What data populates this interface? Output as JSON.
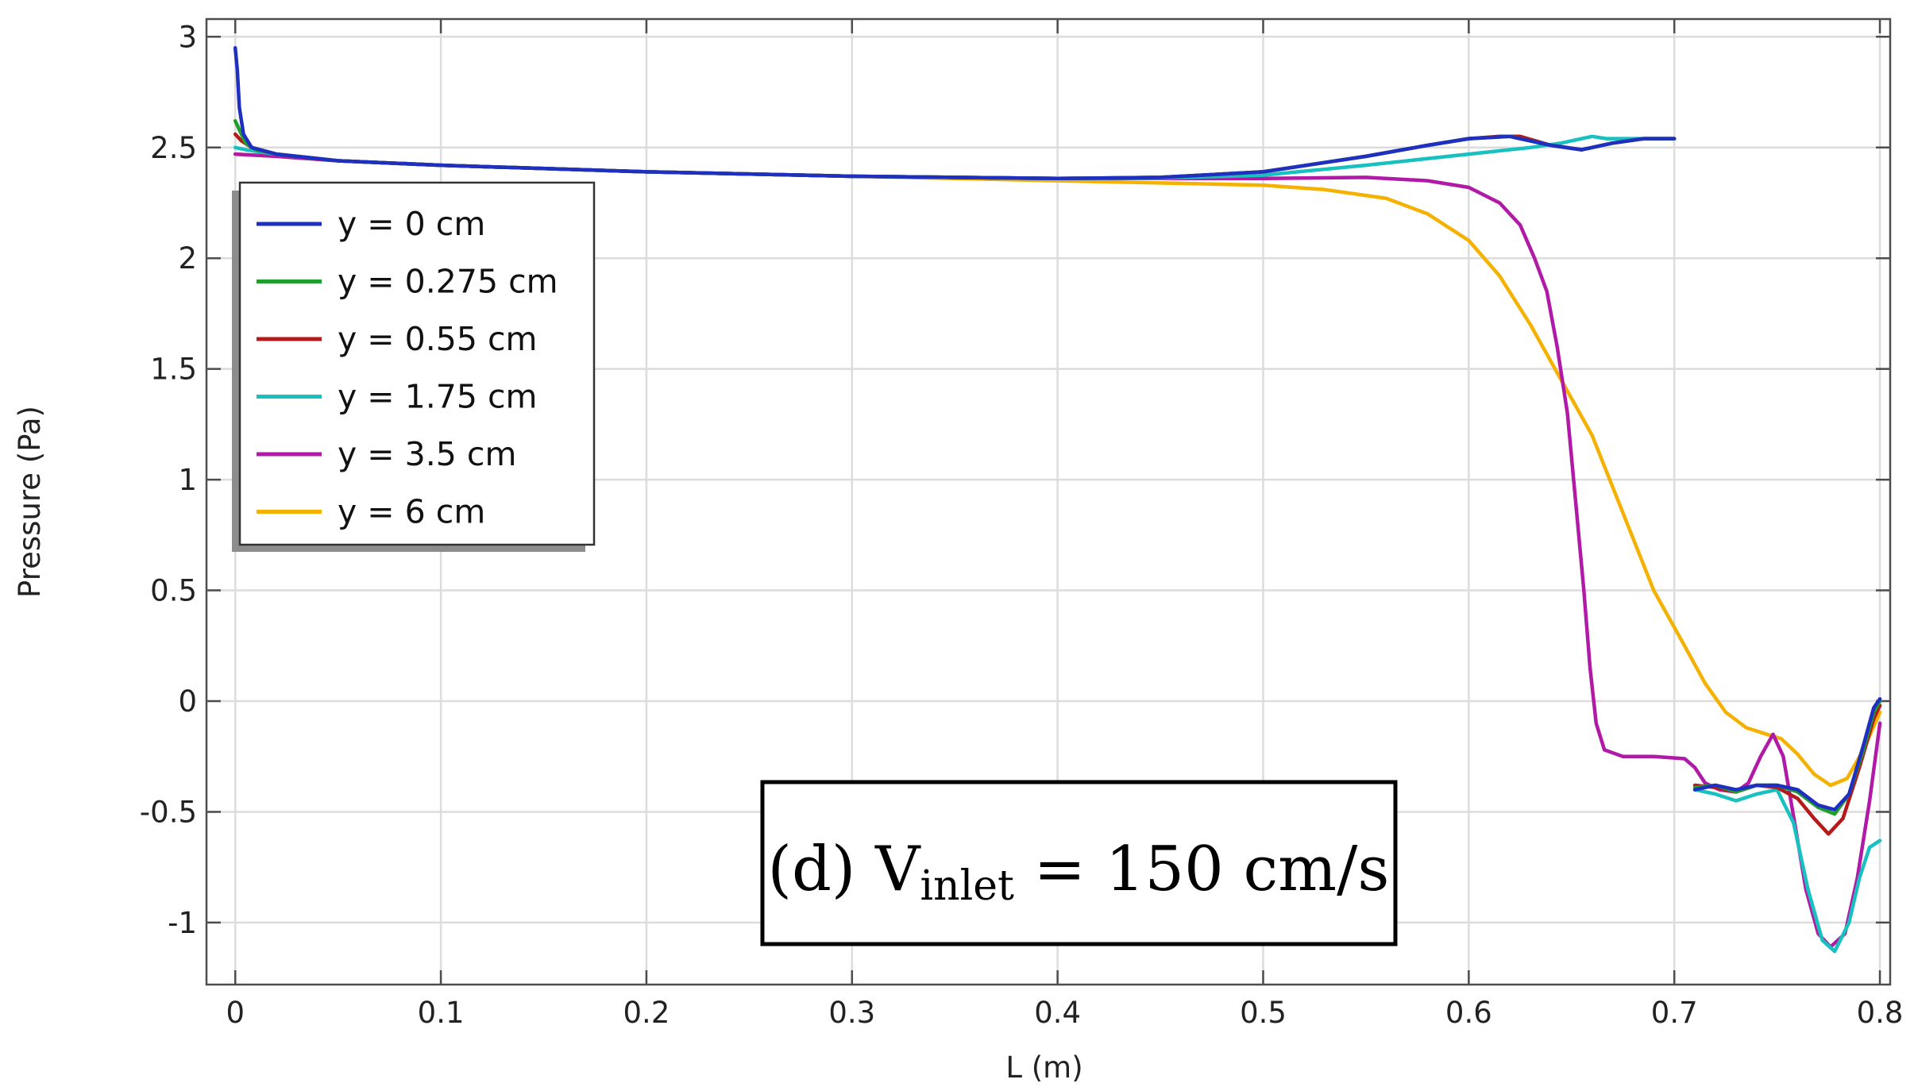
{
  "chart_data": {
    "type": "line",
    "title": "",
    "xlabel": "L (m)",
    "ylabel": "Pressure (Pa)",
    "xlim": [
      -0.014,
      0.805
    ],
    "ylim": [
      -1.28,
      3.08
    ],
    "xticks": [
      0,
      0.1,
      0.2,
      0.3,
      0.4,
      0.5,
      0.6,
      0.7,
      0.8
    ],
    "xtick_labels": [
      "0",
      "0.1",
      "0.2",
      "0.3",
      "0.4",
      "0.5",
      "0.6",
      "0.7",
      "0.8"
    ],
    "yticks": [
      -1,
      -0.5,
      0,
      0.5,
      1,
      1.5,
      2,
      2.5,
      3
    ],
    "ytick_labels": [
      "-1",
      "-0.5",
      "0",
      "0.5",
      "1",
      "1.5",
      "2",
      "2.5",
      "3"
    ],
    "grid": true,
    "legend_position": "upper-left",
    "annotation": {
      "prefix": "(d) V",
      "subscript": "inlet",
      "suffix": " = 150 cm/s"
    },
    "series": [
      {
        "name": "y = 0 cm",
        "color": "#1f2fbf",
        "segments": [
          [
            [
              0,
              2.95
            ],
            [
              0.001,
              2.85
            ],
            [
              0.002,
              2.68
            ],
            [
              0.004,
              2.56
            ],
            [
              0.008,
              2.5
            ],
            [
              0.02,
              2.47
            ],
            [
              0.05,
              2.44
            ],
            [
              0.1,
              2.42
            ],
            [
              0.2,
              2.39
            ],
            [
              0.3,
              2.37
            ],
            [
              0.4,
              2.36
            ],
            [
              0.45,
              2.365
            ],
            [
              0.5,
              2.39
            ],
            [
              0.55,
              2.46
            ],
            [
              0.58,
              2.51
            ],
            [
              0.6,
              2.54
            ],
            [
              0.62,
              2.55
            ],
            [
              0.64,
              2.51
            ],
            [
              0.655,
              2.49
            ],
            [
              0.67,
              2.52
            ],
            [
              0.685,
              2.54
            ],
            [
              0.7,
              2.54
            ]
          ],
          [
            [
              0.71,
              -0.4
            ],
            [
              0.72,
              -0.38
            ],
            [
              0.73,
              -0.4
            ],
            [
              0.74,
              -0.38
            ],
            [
              0.75,
              -0.38
            ],
            [
              0.76,
              -0.4
            ],
            [
              0.77,
              -0.47
            ],
            [
              0.778,
              -0.49
            ],
            [
              0.785,
              -0.42
            ],
            [
              0.792,
              -0.2
            ],
            [
              0.797,
              -0.03
            ],
            [
              0.8,
              0.01
            ]
          ]
        ]
      },
      {
        "name": "y = 0.275 cm",
        "color": "#1e9e2a",
        "segments": [
          [
            [
              0,
              2.62
            ],
            [
              0.002,
              2.58
            ],
            [
              0.005,
              2.52
            ],
            [
              0.01,
              2.49
            ],
            [
              0.02,
              2.47
            ],
            [
              0.05,
              2.44
            ],
            [
              0.1,
              2.42
            ],
            [
              0.2,
              2.39
            ],
            [
              0.3,
              2.37
            ],
            [
              0.4,
              2.36
            ],
            [
              0.45,
              2.365
            ],
            [
              0.5,
              2.39
            ],
            [
              0.55,
              2.46
            ],
            [
              0.58,
              2.51
            ],
            [
              0.6,
              2.54
            ],
            [
              0.62,
              2.55
            ],
            [
              0.64,
              2.51
            ],
            [
              0.655,
              2.49
            ],
            [
              0.67,
              2.52
            ],
            [
              0.685,
              2.54
            ],
            [
              0.7,
              2.54
            ]
          ],
          [
            [
              0.71,
              -0.39
            ],
            [
              0.72,
              -0.38
            ],
            [
              0.73,
              -0.41
            ],
            [
              0.74,
              -0.38
            ],
            [
              0.75,
              -0.38
            ],
            [
              0.76,
              -0.41
            ],
            [
              0.77,
              -0.48
            ],
            [
              0.778,
              -0.51
            ],
            [
              0.785,
              -0.42
            ],
            [
              0.792,
              -0.22
            ],
            [
              0.797,
              -0.05
            ],
            [
              0.8,
              0.0
            ]
          ]
        ]
      },
      {
        "name": "y = 0.55 cm",
        "color": "#b51a1a",
        "segments": [
          [
            [
              0,
              2.56
            ],
            [
              0.003,
              2.53
            ],
            [
              0.008,
              2.5
            ],
            [
              0.02,
              2.47
            ],
            [
              0.05,
              2.44
            ],
            [
              0.1,
              2.42
            ],
            [
              0.2,
              2.39
            ],
            [
              0.3,
              2.37
            ],
            [
              0.4,
              2.36
            ],
            [
              0.45,
              2.365
            ],
            [
              0.5,
              2.39
            ],
            [
              0.55,
              2.46
            ],
            [
              0.58,
              2.51
            ],
            [
              0.6,
              2.54
            ],
            [
              0.615,
              2.55
            ],
            [
              0.625,
              2.55
            ],
            [
              0.64,
              2.51
            ],
            [
              0.655,
              2.49
            ],
            [
              0.67,
              2.52
            ],
            [
              0.685,
              2.54
            ],
            [
              0.7,
              2.54
            ]
          ],
          [
            [
              0.71,
              -0.38
            ],
            [
              0.72,
              -0.39
            ],
            [
              0.73,
              -0.41
            ],
            [
              0.74,
              -0.38
            ],
            [
              0.75,
              -0.39
            ],
            [
              0.76,
              -0.44
            ],
            [
              0.768,
              -0.53
            ],
            [
              0.775,
              -0.6
            ],
            [
              0.782,
              -0.53
            ],
            [
              0.79,
              -0.3
            ],
            [
              0.797,
              -0.08
            ],
            [
              0.8,
              -0.02
            ]
          ]
        ]
      },
      {
        "name": "y = 1.75 cm",
        "color": "#19c0c0",
        "segments": [
          [
            [
              0,
              2.5
            ],
            [
              0.005,
              2.49
            ],
            [
              0.02,
              2.47
            ],
            [
              0.05,
              2.44
            ],
            [
              0.1,
              2.42
            ],
            [
              0.2,
              2.39
            ],
            [
              0.3,
              2.37
            ],
            [
              0.4,
              2.36
            ],
            [
              0.45,
              2.362
            ],
            [
              0.5,
              2.375
            ],
            [
              0.55,
              2.42
            ],
            [
              0.6,
              2.47
            ],
            [
              0.63,
              2.5
            ],
            [
              0.645,
              2.52
            ],
            [
              0.655,
              2.54
            ],
            [
              0.66,
              2.55
            ],
            [
              0.667,
              2.54
            ],
            [
              0.68,
              2.54
            ],
            [
              0.7,
              2.54
            ]
          ],
          [
            [
              0.71,
              -0.4
            ],
            [
              0.72,
              -0.42
            ],
            [
              0.73,
              -0.45
            ],
            [
              0.74,
              -0.42
            ],
            [
              0.75,
              -0.4
            ],
            [
              0.758,
              -0.55
            ],
            [
              0.765,
              -0.85
            ],
            [
              0.772,
              -1.08
            ],
            [
              0.778,
              -1.13
            ],
            [
              0.785,
              -1.0
            ],
            [
              0.79,
              -0.8
            ],
            [
              0.795,
              -0.66
            ],
            [
              0.8,
              -0.63
            ]
          ]
        ]
      },
      {
        "name": "y = 3.5 cm",
        "color": "#b01aa6",
        "segments": [
          [
            [
              0,
              2.47
            ],
            [
              0.02,
              2.46
            ],
            [
              0.05,
              2.44
            ],
            [
              0.1,
              2.42
            ],
            [
              0.2,
              2.39
            ],
            [
              0.3,
              2.37
            ],
            [
              0.4,
              2.36
            ],
            [
              0.5,
              2.36
            ],
            [
              0.55,
              2.365
            ],
            [
              0.58,
              2.35
            ],
            [
              0.6,
              2.32
            ],
            [
              0.615,
              2.25
            ],
            [
              0.625,
              2.15
            ],
            [
              0.632,
              2.0
            ],
            [
              0.638,
              1.85
            ],
            [
              0.643,
              1.6
            ],
            [
              0.648,
              1.3
            ],
            [
              0.652,
              0.9
            ],
            [
              0.656,
              0.5
            ],
            [
              0.659,
              0.15
            ],
            [
              0.662,
              -0.1
            ],
            [
              0.666,
              -0.22
            ],
            [
              0.675,
              -0.25
            ],
            [
              0.69,
              -0.25
            ],
            [
              0.705,
              -0.26
            ],
            [
              0.71,
              -0.3
            ],
            [
              0.715,
              -0.37
            ],
            [
              0.722,
              -0.4
            ],
            [
              0.73,
              -0.41
            ],
            [
              0.736,
              -0.37
            ],
            [
              0.742,
              -0.25
            ],
            [
              0.748,
              -0.15
            ],
            [
              0.753,
              -0.25
            ],
            [
              0.758,
              -0.52
            ],
            [
              0.764,
              -0.85
            ],
            [
              0.77,
              -1.05
            ],
            [
              0.776,
              -1.11
            ],
            [
              0.783,
              -1.05
            ],
            [
              0.789,
              -0.8
            ],
            [
              0.795,
              -0.45
            ],
            [
              0.8,
              -0.1
            ]
          ]
        ]
      },
      {
        "name": "y = 6 cm",
        "color": "#f5b100",
        "segments": [
          [
            [
              0,
              2.47
            ],
            [
              0.02,
              2.46
            ],
            [
              0.05,
              2.44
            ],
            [
              0.1,
              2.42
            ],
            [
              0.2,
              2.39
            ],
            [
              0.3,
              2.37
            ],
            [
              0.4,
              2.35
            ],
            [
              0.45,
              2.34
            ],
            [
              0.5,
              2.33
            ],
            [
              0.53,
              2.31
            ],
            [
              0.56,
              2.27
            ],
            [
              0.58,
              2.2
            ],
            [
              0.6,
              2.08
            ],
            [
              0.615,
              1.92
            ],
            [
              0.63,
              1.7
            ],
            [
              0.645,
              1.45
            ],
            [
              0.66,
              1.2
            ],
            [
              0.675,
              0.85
            ],
            [
              0.69,
              0.5
            ],
            [
              0.705,
              0.25
            ],
            [
              0.715,
              0.08
            ],
            [
              0.725,
              -0.05
            ],
            [
              0.735,
              -0.12
            ],
            [
              0.745,
              -0.15
            ],
            [
              0.752,
              -0.17
            ],
            [
              0.76,
              -0.24
            ],
            [
              0.768,
              -0.33
            ],
            [
              0.776,
              -0.38
            ],
            [
              0.784,
              -0.35
            ],
            [
              0.792,
              -0.22
            ],
            [
              0.8,
              -0.05
            ]
          ]
        ]
      }
    ]
  }
}
